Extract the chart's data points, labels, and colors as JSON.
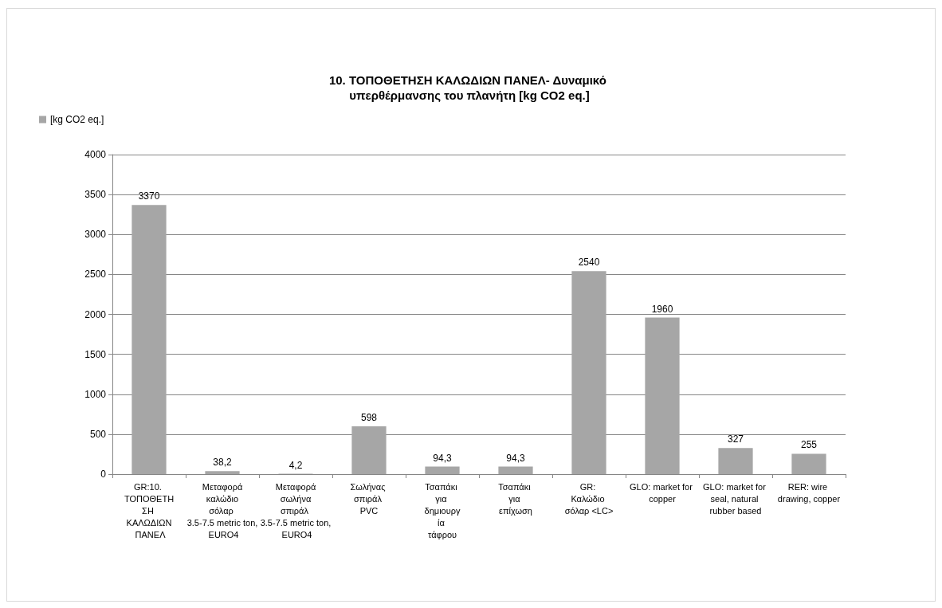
{
  "chart_data": {
    "type": "bar",
    "title": "10. ΤΟΠΟΘΕΤΗΣΗ ΚΑΛΩΔΙΩΝ ΠΑΝΕΛ- Δυναμικό υπερθέρμανσης του πλανήτη [kg CO2 eq.]",
    "categories": [
      "GR:10. ΤΟΠΟΘΕΤΗΣΗ ΚΑΛΩΔΙΩΝ ΠΑΝΕΛ",
      "Μεταφορά καλώδιο σόλαρ 3.5-7.5 metric ton, EURO4",
      "Μεταφορά σωλήνα σπιράλ 3.5-7.5 metric ton, EURO4",
      "Σωλήνας σπιράλ PVC",
      "Τσαπάκι για δημιουργία τάφρου",
      "Τσαπάκι για επίχωση",
      "GR: Καλώδιο σόλαρ <LC>",
      "GLO: market for copper",
      "GLO: market for seal, natural rubber based",
      "RER: wire drawing, copper"
    ],
    "series": [
      {
        "name": "[kg CO2 eq.]",
        "color": "#a6a6a6",
        "values": [
          3370,
          38.2,
          4.2,
          598,
          94.3,
          94.3,
          2540,
          1960,
          327,
          255
        ],
        "value_labels": [
          "3370",
          "38,2",
          "4,2",
          "598",
          "94,3",
          "94,3",
          "2540",
          "1960",
          "327",
          "255"
        ]
      }
    ],
    "ylim": [
      0,
      4000
    ],
    "yticks": [
      0,
      500,
      1000,
      1500,
      2000,
      2500,
      3000,
      3500,
      4000
    ],
    "grid": "y",
    "legend": "top left"
  }
}
